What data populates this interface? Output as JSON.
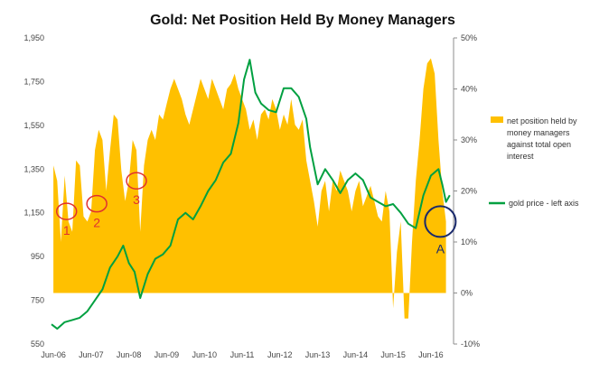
{
  "chart_data": {
    "type": "area",
    "title": "Gold: Net Position Held By Money Managers",
    "x_tick_labels": [
      "Jun-06",
      "Jun-07",
      "Jun-08",
      "Jun-09",
      "Jun-10",
      "Jun-11",
      "Jun-12",
      "Jun-13",
      "Jun-14",
      "Jun-15",
      "Jun-16"
    ],
    "x_range": [
      2006.45,
      2017.1
    ],
    "y_left": {
      "range": [
        550,
        1950
      ],
      "ticks": [
        550,
        750,
        950,
        1150,
        1350,
        1550,
        1750,
        1950
      ],
      "tick_labels": [
        "550",
        "750",
        "950",
        "1,150",
        "1,350",
        "1,550",
        "1,750",
        "1,950"
      ]
    },
    "y_right": {
      "range": [
        -10,
        50
      ],
      "ticks": [
        -10,
        0,
        10,
        20,
        30,
        40,
        50
      ],
      "tick_labels": [
        "-10%",
        "0%",
        "10%",
        "20%",
        "30%",
        "40%",
        "50%"
      ]
    },
    "series": [
      {
        "name": "net position held by money managers against total open interest",
        "axis": "right",
        "color": "#FFC000",
        "x": [
          2006.5,
          2006.6,
          2006.7,
          2006.8,
          2006.9,
          2007.0,
          2007.1,
          2007.2,
          2007.3,
          2007.4,
          2007.5,
          2007.6,
          2007.7,
          2007.8,
          2007.9,
          2008.0,
          2008.1,
          2008.2,
          2008.3,
          2008.4,
          2008.5,
          2008.6,
          2008.7,
          2008.8,
          2008.9,
          2009.0,
          2009.1,
          2009.2,
          2009.3,
          2009.4,
          2009.5,
          2009.6,
          2009.7,
          2009.8,
          2009.9,
          2010.0,
          2010.1,
          2010.2,
          2010.3,
          2010.4,
          2010.5,
          2010.6,
          2010.7,
          2010.8,
          2010.9,
          2011.0,
          2011.1,
          2011.2,
          2011.3,
          2011.4,
          2011.5,
          2011.6,
          2011.7,
          2011.8,
          2011.9,
          2012.0,
          2012.1,
          2012.2,
          2012.3,
          2012.4,
          2012.5,
          2012.6,
          2012.7,
          2012.8,
          2012.9,
          2013.0,
          2013.1,
          2013.2,
          2013.3,
          2013.4,
          2013.5,
          2013.6,
          2013.7,
          2013.8,
          2013.9,
          2014.0,
          2014.1,
          2014.2,
          2014.3,
          2014.4,
          2014.5,
          2014.6,
          2014.7,
          2014.8,
          2014.9,
          2015.0,
          2015.1,
          2015.2,
          2015.3,
          2015.4,
          2015.5,
          2015.6,
          2015.7,
          2015.8,
          2015.9,
          2016.0,
          2016.1,
          2016.2,
          2016.3,
          2016.4,
          2016.5,
          2016.6,
          2016.7,
          2016.8,
          2016.9
        ],
        "values": [
          25,
          22,
          10,
          23,
          14,
          12,
          26,
          25,
          15,
          14,
          16,
          28,
          32,
          30,
          20,
          28,
          35,
          34,
          24,
          18,
          22,
          30,
          28,
          12,
          25,
          30,
          32,
          30,
          35,
          34,
          37,
          40,
          42,
          40,
          38,
          35,
          33,
          36,
          39,
          42,
          40,
          38,
          42,
          40,
          38,
          36,
          40,
          41,
          43,
          40,
          38,
          36,
          32,
          34,
          30,
          35,
          36,
          34,
          38,
          36,
          32,
          35,
          33,
          38,
          33,
          32,
          34,
          26,
          22,
          18,
          13,
          20,
          22,
          16,
          22,
          20,
          24,
          22,
          20,
          16,
          20,
          22,
          17,
          19,
          21,
          18,
          15,
          14,
          20,
          16,
          -3,
          8,
          14,
          -5,
          -5,
          10,
          22,
          30,
          40,
          45,
          46,
          43,
          30,
          20,
          14
        ]
      },
      {
        "name": "gold price - left axis",
        "axis": "left",
        "color": "#00A040",
        "x": [
          2006.45,
          2006.6,
          2006.8,
          2007.0,
          2007.2,
          2007.4,
          2007.6,
          2007.8,
          2008.0,
          2008.2,
          2008.35,
          2008.5,
          2008.65,
          2008.8,
          2009.0,
          2009.2,
          2009.4,
          2009.6,
          2009.8,
          2010.0,
          2010.2,
          2010.4,
          2010.6,
          2010.8,
          2011.0,
          2011.2,
          2011.4,
          2011.55,
          2011.7,
          2011.85,
          2012.0,
          2012.2,
          2012.4,
          2012.6,
          2012.8,
          2013.0,
          2013.2,
          2013.3,
          2013.5,
          2013.7,
          2013.9,
          2014.1,
          2014.3,
          2014.5,
          2014.7,
          2014.9,
          2015.1,
          2015.3,
          2015.5,
          2015.7,
          2015.9,
          2016.1,
          2016.3,
          2016.5,
          2016.7,
          2016.8,
          2016.9,
          2017.0
        ],
        "values": [
          640,
          620,
          650,
          660,
          670,
          700,
          750,
          800,
          900,
          950,
          1000,
          920,
          880,
          760,
          870,
          940,
          960,
          1000,
          1120,
          1150,
          1120,
          1180,
          1250,
          1300,
          1380,
          1420,
          1560,
          1760,
          1850,
          1700,
          1650,
          1620,
          1610,
          1720,
          1720,
          1680,
          1580,
          1450,
          1280,
          1350,
          1300,
          1240,
          1300,
          1330,
          1300,
          1220,
          1200,
          1180,
          1190,
          1150,
          1100,
          1080,
          1230,
          1320,
          1350,
          1280,
          1200,
          1230
        ]
      }
    ],
    "annotations": [
      {
        "label": "1",
        "x": 2006.85,
        "y_right": 16,
        "color": "#E03030"
      },
      {
        "label": "2",
        "x": 2007.65,
        "y_right": 17.5,
        "color": "#E03030"
      },
      {
        "label": "3",
        "x": 2008.7,
        "y_right": 22,
        "color": "#E03030"
      },
      {
        "label": "A",
        "x": 2016.75,
        "y_right": 14,
        "color": "#1A2A6C"
      }
    ],
    "legend_placement": "right",
    "grid": false
  }
}
